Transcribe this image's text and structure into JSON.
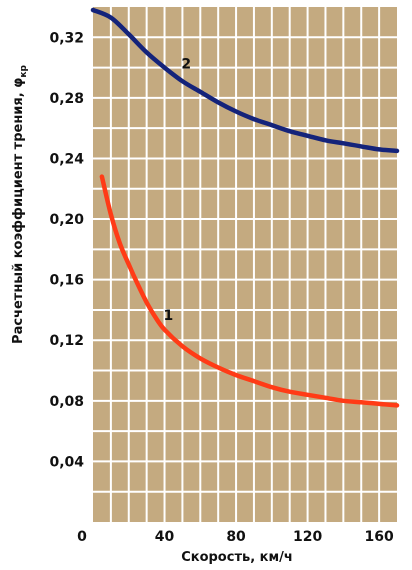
{
  "chart_data": {
    "type": "line",
    "title": "",
    "xlabel": "Скорость, км/ч",
    "ylabel": "Расчетный коэффициент трения, φ",
    "ylabel_subscript": "кр",
    "xlim": [
      0,
      170
    ],
    "ylim": [
      0,
      0.34
    ],
    "x_ticks": [
      "0",
      "40",
      "80",
      "120",
      "160"
    ],
    "y_ticks": [
      "0,04",
      "0,08",
      "0,12",
      "0,16",
      "0,20",
      "0,24",
      "0,28",
      "0,32"
    ],
    "grid": true,
    "plot_background": "#c4aa80",
    "grid_color": "#ffffff",
    "series": [
      {
        "name": "1",
        "color": "#ff3b16",
        "x": [
          5,
          10,
          15,
          20,
          25,
          30,
          35,
          40,
          50,
          60,
          70,
          80,
          90,
          100,
          110,
          120,
          130,
          140,
          150,
          160,
          170
        ],
        "y": [
          0.228,
          0.203,
          0.184,
          0.17,
          0.157,
          0.145,
          0.135,
          0.127,
          0.116,
          0.108,
          0.102,
          0.097,
          0.093,
          0.089,
          0.086,
          0.084,
          0.082,
          0.08,
          0.079,
          0.078,
          0.077
        ]
      },
      {
        "name": "2",
        "color": "#14237a",
        "x": [
          0,
          10,
          20,
          30,
          40,
          50,
          60,
          70,
          80,
          90,
          100,
          110,
          120,
          130,
          140,
          150,
          160,
          170
        ],
        "y": [
          0.338,
          0.333,
          0.322,
          0.31,
          0.3,
          0.291,
          0.284,
          0.277,
          0.271,
          0.266,
          0.262,
          0.258,
          0.255,
          0.252,
          0.25,
          0.248,
          0.246,
          0.245
        ]
      }
    ]
  }
}
